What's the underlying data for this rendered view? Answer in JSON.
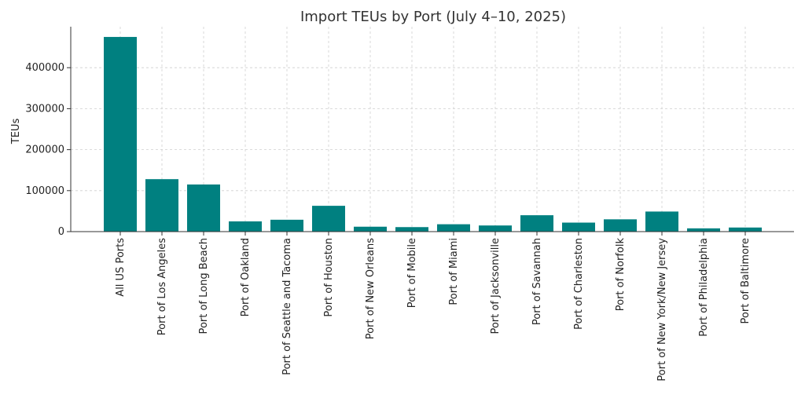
{
  "chart_data": {
    "type": "bar",
    "title": "Import TEUs by Port (July 4–10, 2025)",
    "xlabel": "",
    "ylabel": "TEUs",
    "categories": [
      "All US Ports",
      "Port of Los Angeles",
      "Port of Long Beach",
      "Port of Oakland",
      "Port of Seattle and Tacoma",
      "Port of Houston",
      "Port of New Orleans",
      "Port of Mobile",
      "Port of Miami",
      "Port of Jacksonville",
      "Port of Savannah",
      "Port of Charleston",
      "Port of Norfolk",
      "Port of New York/New Jersey",
      "Port of Philadelphia",
      "Port of Baltimore"
    ],
    "values": [
      475000,
      128000,
      115000,
      25000,
      29000,
      63000,
      12000,
      11000,
      18000,
      15000,
      40000,
      22000,
      30000,
      49000,
      8000,
      10000
    ],
    "ylim": [
      0,
      500000
    ],
    "yticks": [
      0,
      100000,
      200000,
      300000,
      400000
    ],
    "grid": true,
    "bar_color": "#008080"
  }
}
